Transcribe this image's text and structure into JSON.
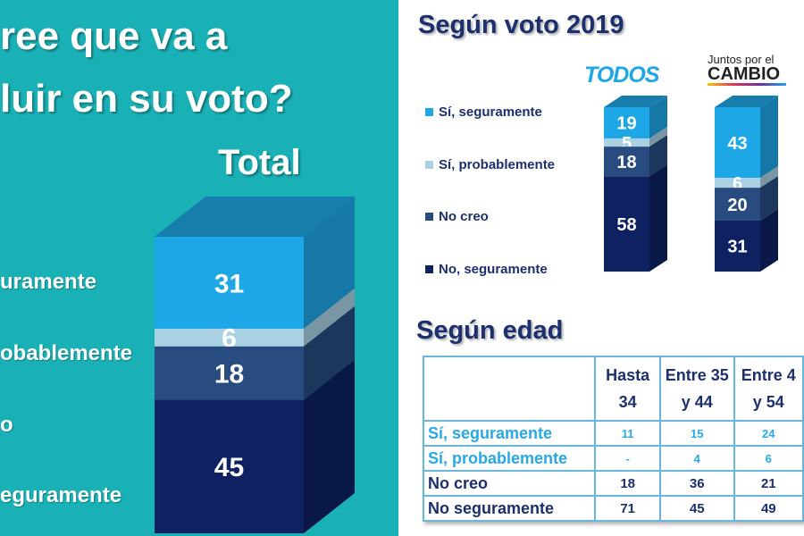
{
  "left": {
    "title_lines": [
      "ree que va a",
      "luir en su voto?"
    ],
    "total_label": "Total",
    "legend": [
      "uramente",
      "obablemente",
      "o",
      "eguramente"
    ]
  },
  "right": {
    "title_vote": "Según voto 2019",
    "title_age": "Según edad",
    "logo_todos": "TODOS",
    "logo_cambio_line1": "Juntos por el",
    "logo_cambio_line2": "CAMBIO",
    "legend": [
      "Sí, seguramente",
      "Sí, probablemente",
      "No creo",
      "No, seguramente"
    ]
  },
  "colors": {
    "si_seguramente": "#1ea7e6",
    "si_probablemente": "#a9d0e3",
    "no_creo": "#284b80",
    "no_seguramente": "#0e2262",
    "bg_left": "#1ab1b6"
  },
  "chart_data": [
    {
      "type": "bar",
      "stacked": true,
      "title": "Total",
      "categories": [
        "Total"
      ],
      "series": [
        {
          "name": "Sí, seguramente",
          "values": [
            31
          ]
        },
        {
          "name": "Sí, probablemente",
          "values": [
            6
          ]
        },
        {
          "name": "No creo",
          "values": [
            18
          ]
        },
        {
          "name": "No, seguramente",
          "values": [
            45
          ]
        }
      ]
    },
    {
      "type": "bar",
      "stacked": true,
      "title": "Según voto 2019",
      "categories": [
        "TODOS",
        "Juntos por el CAMBIO"
      ],
      "series": [
        {
          "name": "Sí, seguramente",
          "values": [
            19,
            43
          ]
        },
        {
          "name": "Sí, probablemente",
          "values": [
            5,
            6
          ]
        },
        {
          "name": "No creo",
          "values": [
            18,
            20
          ]
        },
        {
          "name": "No, seguramente",
          "values": [
            58,
            31
          ]
        }
      ]
    },
    {
      "type": "table",
      "title": "Según edad",
      "columns": [
        "",
        "Hasta 34",
        "Entre 35 y 44",
        "Entre 4 y 54"
      ],
      "rows": [
        [
          "Sí, seguramente",
          "11",
          "15",
          "24"
        ],
        [
          "Sí, probablemente",
          "-",
          "4",
          "6"
        ],
        [
          "No creo",
          "18",
          "36",
          "21"
        ],
        [
          "No seguramente",
          "71",
          "45",
          "49"
        ]
      ]
    }
  ]
}
